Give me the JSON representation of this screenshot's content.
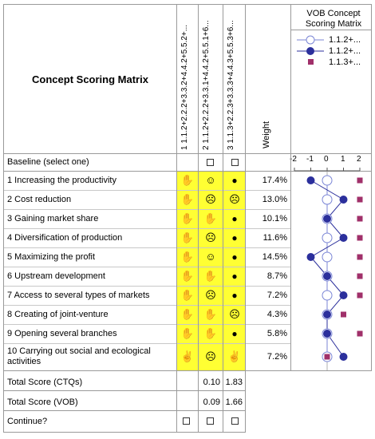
{
  "matrix": {
    "title": "Concept Scoring Matrix",
    "concept_headers": [
      "1 1.1.2+2.2.2+3.3.2+4.4.2+5.5.2+...",
      "2 1.1.2+2.2.2+3.3.1+4.4.2+5.5.1+6...",
      "3 1.1.3+2.2.3+3.3.3+4.4.3+5.5.3+6..."
    ],
    "weight_header": "Weight",
    "baseline_label": "Baseline (select one)",
    "criteria": [
      {
        "label": "1 Increasing the productivity",
        "weight": "17.4%",
        "icons": [
          "thumb-down-icon",
          "smile-icon",
          "bomb-icon"
        ]
      },
      {
        "label": "2 Cost reduction",
        "weight": "13.0%",
        "icons": [
          "thumb-down-icon",
          "frown-icon",
          "frown-icon"
        ]
      },
      {
        "label": "3 Gaining market share",
        "weight": "10.1%",
        "icons": [
          "thumb-down-icon",
          "thumb-down-icon",
          "bomb-icon"
        ]
      },
      {
        "label": "4 Diversification of production",
        "weight": "11.6%",
        "icons": [
          "thumb-down-icon",
          "frown-icon",
          "bomb-icon"
        ]
      },
      {
        "label": "5 Maximizing the profit",
        "weight": "14.5%",
        "icons": [
          "thumb-down-icon",
          "smile-icon",
          "bomb-icon"
        ]
      },
      {
        "label": "6 Upstream development",
        "weight": "8.7%",
        "icons": [
          "thumb-down-icon",
          "thumb-down-icon",
          "bomb-icon"
        ]
      },
      {
        "label": "7 Access to several types of markets",
        "weight": "7.2%",
        "icons": [
          "thumb-down-icon",
          "frown-icon",
          "bomb-icon"
        ]
      },
      {
        "label": "8 Creating of joint-venture",
        "weight": "4.3%",
        "icons": [
          "thumb-down-icon",
          "thumb-down-icon",
          "frown-icon"
        ]
      },
      {
        "label": "9 Opening several branches",
        "weight": "5.8%",
        "icons": [
          "thumb-down-icon",
          "thumb-down-icon",
          "bomb-icon"
        ]
      },
      {
        "label": "10 Carrying out social and ecological activities",
        "label_lines": [
          "10 Carrying out social and ecological",
          "activities"
        ],
        "weight": "7.2%",
        "icons": [
          "thumb-up-icon",
          "frown-icon",
          "thumb-up-icon"
        ]
      }
    ],
    "total_ctq_label": "Total Score (CTQs)",
    "total_ctq": [
      "",
      "0.10",
      "1.83"
    ],
    "total_vob_label": "Total Score (VOB)",
    "total_vob": [
      "",
      "0.09",
      "1.66"
    ],
    "continue_label": "Continue?"
  },
  "vob": {
    "title_lines": [
      "VOB Concept",
      "Scoring Matrix"
    ],
    "legend": [
      {
        "name": "1.1.2+...",
        "marker": "open-circle"
      },
      {
        "name": "1.1.2+...",
        "marker": "filled-circle"
      },
      {
        "name": "1.1.3+...",
        "marker": "square"
      }
    ],
    "axis_ticks": [
      "-2",
      "-1",
      "0",
      "1",
      "2"
    ],
    "colors": {
      "open": "#7b86d6",
      "filled": "#2b2f9c",
      "square": "#a0306a",
      "highlight": "#ffff33"
    }
  },
  "chart_data": {
    "type": "scatter",
    "title": "VOB Concept Scoring Matrix",
    "xlim": [
      -2,
      2
    ],
    "categories": [
      "1",
      "2",
      "3",
      "4",
      "5",
      "6",
      "7",
      "8",
      "9",
      "10"
    ],
    "series": [
      {
        "name": "1.1.2+...",
        "marker": "open-circle",
        "values": [
          0,
          0,
          0,
          0,
          0,
          0,
          0,
          0,
          0,
          0
        ]
      },
      {
        "name": "1.1.2+...",
        "marker": "filled-circle",
        "values": [
          -1,
          1,
          0,
          1,
          -1,
          0,
          1,
          0,
          0,
          1
        ]
      },
      {
        "name": "1.1.3+...",
        "marker": "square",
        "values": [
          2,
          2,
          2,
          2,
          2,
          2,
          2,
          1,
          2,
          0
        ]
      }
    ]
  }
}
